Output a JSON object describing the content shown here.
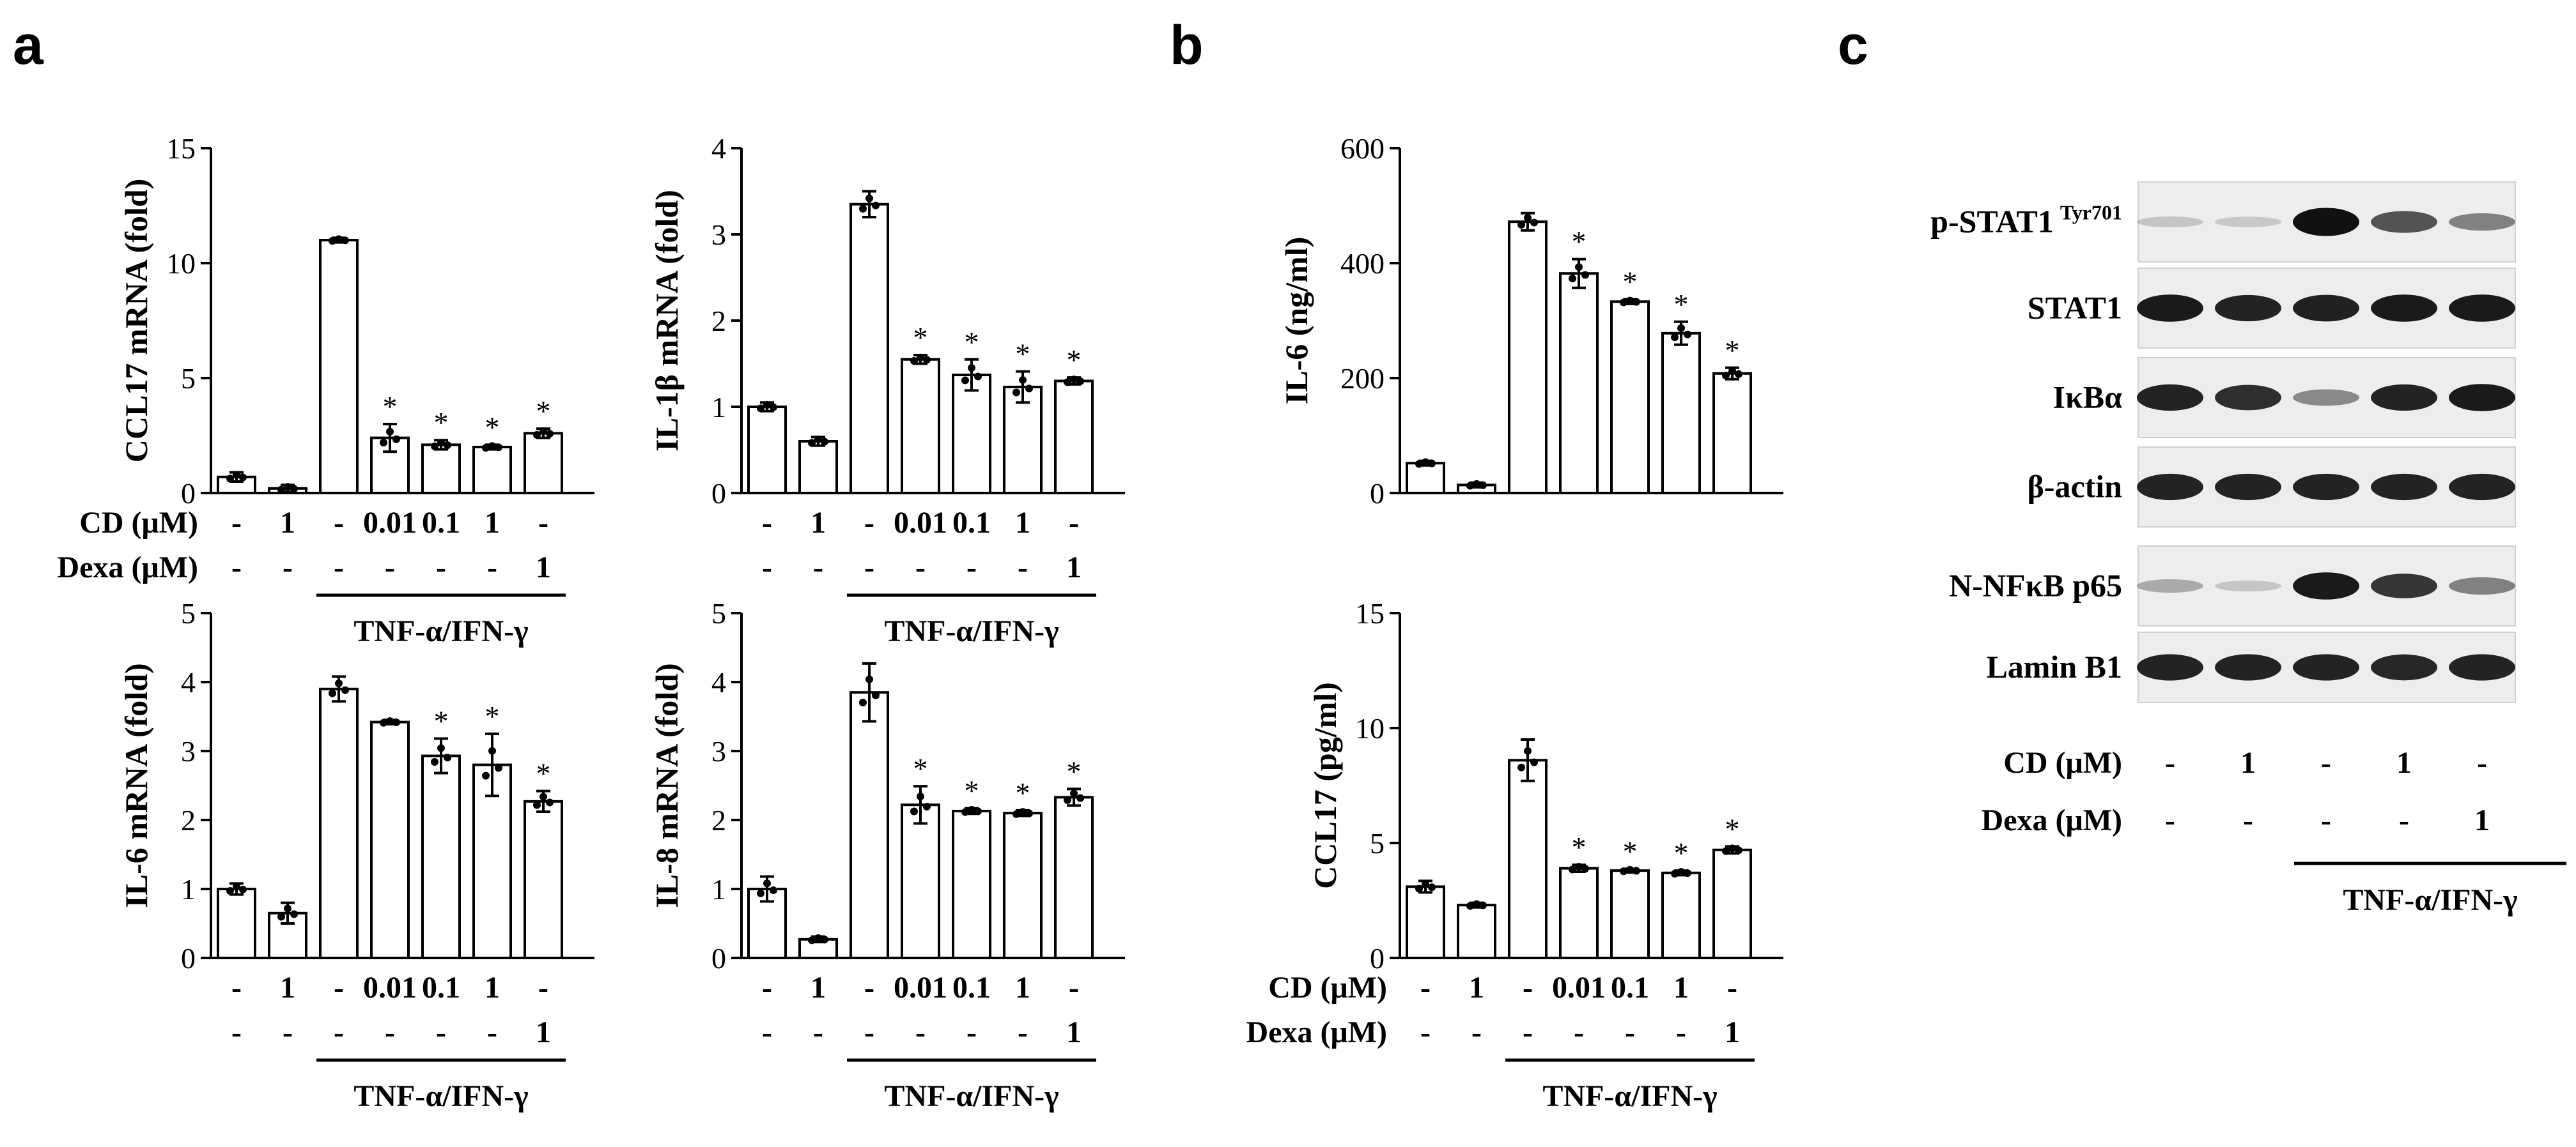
{
  "panel_labels": {
    "a": "a",
    "b": "b",
    "c": "c"
  },
  "row_labels": {
    "cd": "CD (μM)",
    "dexa": "Dexa (μM)"
  },
  "group_label": "TNF-α/IFN-γ",
  "star_symbol": "*",
  "chart_data": [
    {
      "id": "ccl17_mrna",
      "type": "bar",
      "ylabel": "CCL17 mRNA (fold)",
      "ylim": [
        0,
        15
      ],
      "yticks": [
        0,
        5,
        10,
        15
      ],
      "values": [
        0.7,
        0.2,
        11.0,
        2.4,
        2.1,
        2.0,
        2.6
      ],
      "errors": [
        0.2,
        0.15,
        0.1,
        0.6,
        0.2,
        0.1,
        0.2
      ],
      "significant": [
        false,
        false,
        false,
        true,
        true,
        true,
        true
      ],
      "cd": [
        "-",
        "1",
        "-",
        "0.01",
        "0.1",
        "1",
        "-"
      ],
      "dexa": [
        "-",
        "-",
        "-",
        "-",
        "-",
        "-",
        "1"
      ]
    },
    {
      "id": "il1b_mrna",
      "type": "bar",
      "ylabel": "IL-1β mRNA (fold)",
      "ylim": [
        0,
        4
      ],
      "yticks": [
        0,
        1,
        2,
        3,
        4
      ],
      "values": [
        1.0,
        0.6,
        3.35,
        1.55,
        1.37,
        1.23,
        1.3
      ],
      "errors": [
        0.05,
        0.05,
        0.15,
        0.05,
        0.18,
        0.18,
        0.04
      ],
      "significant": [
        false,
        false,
        false,
        true,
        true,
        true,
        true
      ],
      "cd": [
        "-",
        "1",
        "-",
        "0.01",
        "0.1",
        "1",
        "-"
      ],
      "dexa": [
        "-",
        "-",
        "-",
        "-",
        "-",
        "-",
        "1"
      ]
    },
    {
      "id": "il6_mrna",
      "type": "bar",
      "ylabel": "IL-6 mRNA (fold)",
      "ylim": [
        0,
        5
      ],
      "yticks": [
        0,
        1,
        2,
        3,
        4,
        5
      ],
      "values": [
        1.0,
        0.65,
        3.9,
        3.42,
        2.93,
        2.8,
        2.27
      ],
      "errors": [
        0.08,
        0.15,
        0.18,
        0.03,
        0.25,
        0.45,
        0.15
      ],
      "significant": [
        false,
        false,
        false,
        false,
        true,
        true,
        true
      ],
      "cd": [
        "-",
        "1",
        "-",
        "0.01",
        "0.1",
        "1",
        "-"
      ],
      "dexa": [
        "-",
        "-",
        "-",
        "-",
        "-",
        "-",
        "1"
      ]
    },
    {
      "id": "il8_mrna",
      "type": "bar",
      "ylabel": "IL-8 mRNA (fold)",
      "ylim": [
        0,
        5
      ],
      "yticks": [
        0,
        1,
        2,
        3,
        4,
        5
      ],
      "values": [
        1.0,
        0.27,
        3.85,
        2.22,
        2.13,
        2.1,
        2.33
      ],
      "errors": [
        0.18,
        0.04,
        0.42,
        0.27,
        0.04,
        0.04,
        0.12
      ],
      "significant": [
        false,
        false,
        false,
        true,
        true,
        true,
        true
      ],
      "cd": [
        "-",
        "1",
        "-",
        "0.01",
        "0.1",
        "1",
        "-"
      ],
      "dexa": [
        "-",
        "-",
        "-",
        "-",
        "-",
        "-",
        "1"
      ]
    },
    {
      "id": "il6_protein",
      "type": "bar",
      "ylabel": "IL-6 (ng/ml)",
      "ylim": [
        0,
        600
      ],
      "yticks": [
        0,
        200,
        400,
        600
      ],
      "values": [
        52,
        14,
        472,
        382,
        333,
        278,
        208
      ],
      "errors": [
        4,
        4,
        15,
        25,
        4,
        20,
        10
      ],
      "significant": [
        false,
        false,
        false,
        true,
        true,
        true,
        true
      ],
      "cd": [],
      "dexa": []
    },
    {
      "id": "ccl17_protein",
      "type": "bar",
      "ylabel": "CCL17 (pg/ml)",
      "ylim": [
        0,
        15
      ],
      "yticks": [
        0,
        5,
        10,
        15
      ],
      "values": [
        3.1,
        2.3,
        8.6,
        3.9,
        3.8,
        3.7,
        4.7
      ],
      "errors": [
        0.25,
        0.1,
        0.9,
        0.15,
        0.08,
        0.1,
        0.15
      ],
      "significant": [
        false,
        false,
        false,
        true,
        true,
        true,
        true
      ],
      "cd": [
        "-",
        "1",
        "-",
        "0.01",
        "0.1",
        "1",
        "-"
      ],
      "dexa": [
        "-",
        "-",
        "-",
        "-",
        "-",
        "-",
        "1"
      ]
    }
  ],
  "western_blot": {
    "bands": [
      {
        "label": "p-STAT1",
        "superscript": "Tyr701",
        "intensity": [
          0.04,
          0.02,
          1.0,
          0.65,
          0.4
        ]
      },
      {
        "label": "STAT1",
        "superscript": "",
        "intensity": [
          0.95,
          0.9,
          0.92,
          0.95,
          0.95
        ]
      },
      {
        "label": "IκBα",
        "superscript": "",
        "intensity": [
          0.9,
          0.85,
          0.35,
          0.9,
          0.95
        ]
      },
      {
        "label": "β-actin",
        "superscript": "",
        "intensity": [
          0.9,
          0.9,
          0.9,
          0.9,
          0.9
        ]
      },
      {
        "label": "N-NFκB p65",
        "superscript": "",
        "intensity": [
          0.18,
          0.04,
          0.95,
          0.8,
          0.4
        ]
      },
      {
        "label": "Lamin B1",
        "superscript": "",
        "intensity": [
          0.9,
          0.9,
          0.9,
          0.88,
          0.9
        ]
      }
    ],
    "cd": [
      "-",
      "1",
      "-",
      "1",
      "-"
    ],
    "dexa": [
      "-",
      "-",
      "-",
      "-",
      "1"
    ]
  }
}
